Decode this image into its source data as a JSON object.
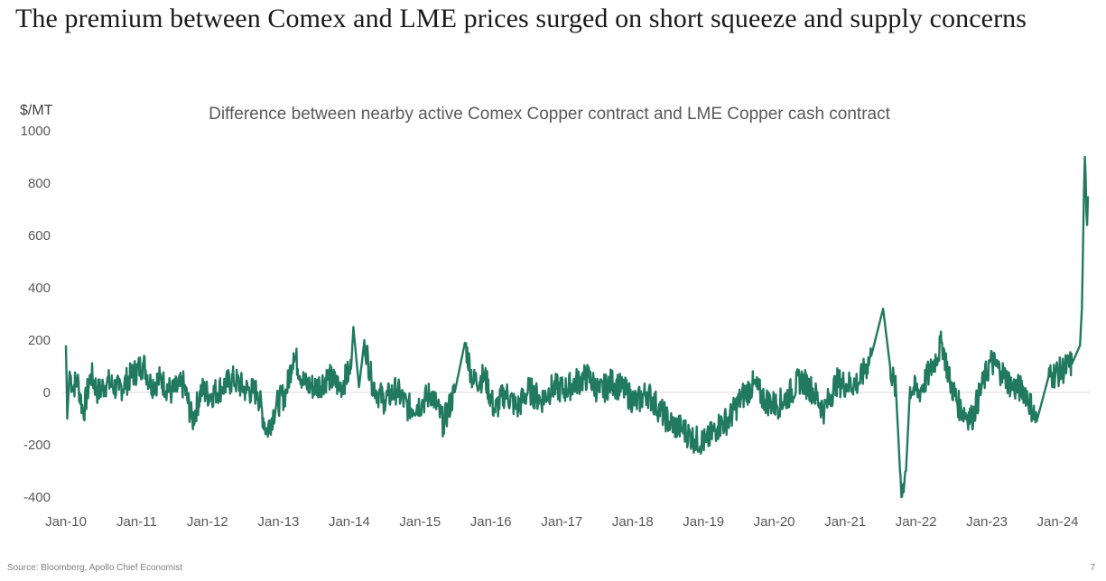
{
  "headline": "The premium between Comex and LME prices surged on short squeeze and supply concerns",
  "footer": {
    "source": "Source: Bloomberg, Apollo Chief Economist",
    "page_number": "7"
  },
  "chart_data": {
    "type": "line",
    "title": "Difference between nearby active Comex Copper contract and LME Copper cash contract",
    "ylabel": "$/MT",
    "xlabel": "",
    "ylim": [
      -400,
      1000
    ],
    "xlim": [
      "2010-01-01",
      "2024-06-05"
    ],
    "grid": false,
    "zero_line": true,
    "y_ticks": [
      "1000",
      "800",
      "600",
      "400",
      "200",
      "0",
      "-200",
      "-400"
    ],
    "x_ticks": [
      "Jan-10",
      "Jan-11",
      "Jan-12",
      "Jan-13",
      "Jan-14",
      "Jan-15",
      "Jan-16",
      "Jan-17",
      "Jan-18",
      "Jan-19",
      "Jan-20",
      "Jan-21",
      "Jan-22",
      "Jan-23",
      "Jan-24"
    ],
    "colors": {
      "line": "#217a5f",
      "zero_line": "#d9d9d9"
    },
    "series": [
      {
        "x": [
          "2010-01-01",
          "2010-01-08",
          "2010-01-20",
          "2010-02-05",
          "2010-03-01",
          "2010-04-01",
          "2010-05-10",
          "2010-06-15",
          "2010-08-01",
          "2010-10-01",
          "2010-12-01",
          "2011-02-05",
          "2011-03-15",
          "2011-05-01",
          "2011-07-01",
          "2011-09-01",
          "2011-10-15",
          "2011-12-01",
          "2012-01-15",
          "2012-03-15",
          "2012-05-15",
          "2012-07-15",
          "2012-09-15",
          "2012-11-01",
          "2012-12-20",
          "2013-02-10",
          "2013-03-20",
          "2013-05-15",
          "2013-07-15",
          "2013-09-15",
          "2013-11-15",
          "2014-01-10",
          "2014-01-22",
          "2014-02-20",
          "2014-03-20",
          "2014-04-25",
          "2014-05-25",
          "2014-07-01",
          "2014-09-01",
          "2014-11-01",
          "2015-01-10",
          "2015-03-01",
          "2015-05-01",
          "2015-07-01",
          "2015-08-20",
          "2015-10-01",
          "2015-12-01",
          "2016-01-20",
          "2016-03-15",
          "2016-05-15",
          "2016-07-15",
          "2016-09-15",
          "2016-11-15",
          "2017-01-15",
          "2017-03-15",
          "2017-05-15",
          "2017-07-15",
          "2017-09-15",
          "2017-11-15",
          "2018-01-20",
          "2018-03-15",
          "2018-05-15",
          "2018-07-15",
          "2018-09-15",
          "2018-11-15",
          "2019-01-15",
          "2019-03-15",
          "2019-05-15",
          "2019-07-15",
          "2019-09-15",
          "2019-11-15",
          "2020-01-15",
          "2020-03-15",
          "2020-05-15",
          "2020-07-15",
          "2020-09-15",
          "2020-11-15",
          "2021-01-15",
          "2021-03-15",
          "2021-05-15",
          "2021-07-15",
          "2021-08-20",
          "2021-09-20",
          "2021-10-10",
          "2021-10-18",
          "2021-10-26",
          "2021-11-10",
          "2021-12-01",
          "2022-01-15",
          "2022-03-15",
          "2022-05-15",
          "2022-06-25",
          "2022-08-15",
          "2022-10-15",
          "2022-12-15",
          "2023-01-20",
          "2023-03-15",
          "2023-05-15",
          "2023-07-15",
          "2023-09-15",
          "2023-11-15",
          "2024-01-15",
          "2024-03-15",
          "2024-04-25",
          "2024-05-05",
          "2024-05-15",
          "2024-05-20",
          "2024-05-24",
          "2024-05-28",
          "2024-06-01",
          "2024-06-05"
        ],
        "y": [
          180,
          -100,
          80,
          20,
          50,
          -80,
          70,
          0,
          40,
          10,
          60,
          110,
          30,
          50,
          0,
          30,
          -110,
          10,
          -10,
          20,
          50,
          10,
          0,
          -150,
          -50,
          0,
          150,
          30,
          20,
          60,
          20,
          90,
          250,
          20,
          200,
          50,
          0,
          -30,
          10,
          -60,
          -40,
          0,
          -120,
          10,
          190,
          40,
          60,
          -70,
          0,
          -60,
          10,
          -30,
          20,
          10,
          40,
          60,
          0,
          40,
          10,
          -40,
          0,
          -60,
          -120,
          -140,
          -180,
          -190,
          -130,
          -100,
          -20,
          30,
          -30,
          -50,
          -10,
          50,
          10,
          -70,
          40,
          30,
          40,
          140,
          320,
          100,
          0,
          -300,
          -400,
          -350,
          -300,
          20,
          0,
          80,
          190,
          40,
          -60,
          -100,
          40,
          120,
          80,
          20,
          10,
          -110,
          60,
          80,
          110,
          180,
          320,
          750,
          900,
          830,
          690,
          640,
          750
        ]
      }
    ]
  }
}
